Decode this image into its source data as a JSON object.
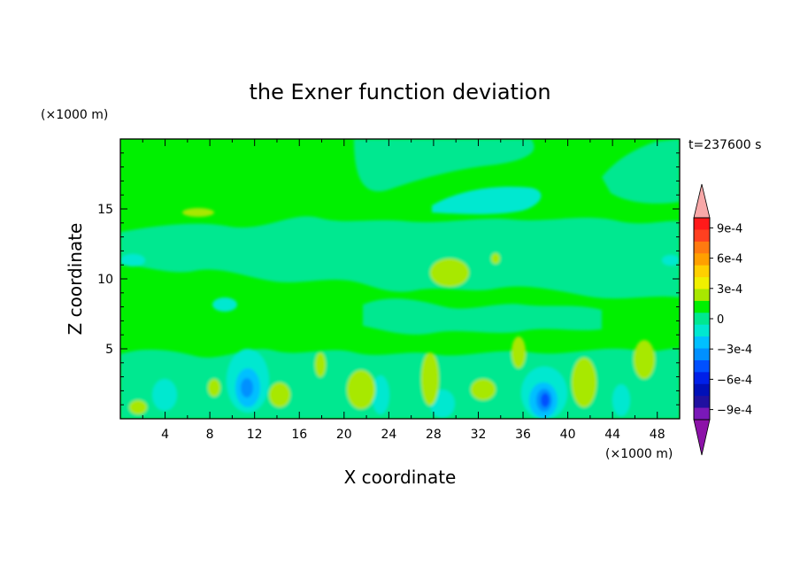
{
  "chart_data": {
    "type": "heatmap",
    "title": "the Exner function deviation",
    "xlabel": "X coordinate",
    "ylabel": "Z coordinate",
    "x_unit": "(×1000 m)",
    "y_unit": "(×1000 m)",
    "time_label": "t=237600 s",
    "xlim": [
      0,
      50
    ],
    "ylim": [
      0,
      20
    ],
    "x_ticks": [
      4,
      8,
      12,
      16,
      20,
      24,
      28,
      32,
      36,
      40,
      44,
      48
    ],
    "y_ticks": [
      5,
      10,
      15
    ],
    "colorbar": {
      "min": -0.0011,
      "max": 0.0011,
      "step": 0.0001,
      "tick_values": [
        0.0009,
        0.0006,
        0.0003,
        0,
        -0.0003,
        -0.0006,
        -0.0009
      ],
      "tick_labels": [
        "9e-4",
        "6e-4",
        "3e-4",
        "0",
        "−3e-4",
        "−6e-4",
        "−9e-4"
      ],
      "colors": [
        "#f8a8a8",
        "#ff1a1a",
        "#ff4020",
        "#ff7a10",
        "#ffa000",
        "#ffd000",
        "#f0f000",
        "#a8e800",
        "#00f000",
        "#00e890",
        "#00e8d0",
        "#00c0ff",
        "#0090ff",
        "#0050ff",
        "#0020e8",
        "#0010b8",
        "#2010a0",
        "#7a18b8",
        "#8c12a8"
      ]
    },
    "field_description": "Exner function deviation field, mostly near 0 to -1e-4, with negative cores near x≈11,z≈2 and x≈38,z≈1.5 (~-6e-4) and small positive patches near the surface",
    "features": [
      {
        "x": 11.5,
        "z": 2.5,
        "value": -0.0004
      },
      {
        "x": 38.0,
        "z": 1.5,
        "value": -0.0006
      },
      {
        "x": 29.5,
        "z": 10.5,
        "value": 0.0001
      },
      {
        "x": 7.0,
        "z": 14.8,
        "value": 0.0001
      }
    ]
  }
}
